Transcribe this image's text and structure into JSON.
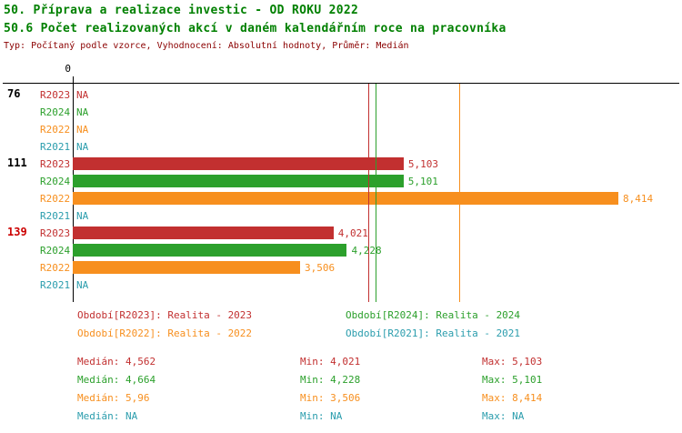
{
  "colors": {
    "title_green": "#008000",
    "meta_red": "#8b0000",
    "axis_black": "#000000",
    "flag_red": "#cc0000",
    "series": {
      "R2023": "#c23030",
      "R2024": "#2ca02c",
      "R2022": "#f78f1e",
      "R2021": "#2b9dad"
    }
  },
  "chart_data": {
    "type": "bar",
    "orientation": "horizontal",
    "title": "50. Příprava a realizace investic - OD ROKU 2022",
    "subtitle": "50.6 Počet realizovaných akcí v daném kalendářním roce na pracovníka",
    "meta": "Typ: Počítaný podle vzorce, Vyhodnocení: Absolutní hodnoty, Průměr: Medián",
    "value_axis_start_label": "0",
    "xmax": 8.414,
    "grid": false,
    "series_order": [
      "R2023",
      "R2024",
      "R2022",
      "R2021"
    ],
    "groups": [
      {
        "label": "76",
        "label_color": "#000000",
        "bars": [
          {
            "series": "R2023",
            "value": null,
            "display": "NA"
          },
          {
            "series": "R2024",
            "value": null,
            "display": "NA"
          },
          {
            "series": "R2022",
            "value": null,
            "display": "NA"
          },
          {
            "series": "R2021",
            "value": null,
            "display": "NA"
          }
        ]
      },
      {
        "label": "111",
        "label_color": "#000000",
        "bars": [
          {
            "series": "R2023",
            "value": 5.103,
            "display": "5,103"
          },
          {
            "series": "R2024",
            "value": 5.101,
            "display": "5,101"
          },
          {
            "series": "R2022",
            "value": 8.414,
            "display": "8,414"
          },
          {
            "series": "R2021",
            "value": null,
            "display": "NA"
          }
        ]
      },
      {
        "label": "139",
        "label_color": "#cc0000",
        "bars": [
          {
            "series": "R2023",
            "value": 4.021,
            "display": "4,021"
          },
          {
            "series": "R2024",
            "value": 4.228,
            "display": "4,228"
          },
          {
            "series": "R2022",
            "value": 3.506,
            "display": "3,506"
          },
          {
            "series": "R2021",
            "value": null,
            "display": "NA"
          }
        ]
      }
    ],
    "median_lines": [
      {
        "series": "R2023",
        "value": 4.562
      },
      {
        "series": "R2024",
        "value": 4.664
      },
      {
        "series": "R2022",
        "value": 5.96
      }
    ],
    "legend": [
      {
        "series": "R2023",
        "text": "Období[R2023]: Realita - 2023"
      },
      {
        "series": "R2024",
        "text": "Období[R2024]: Realita - 2024"
      },
      {
        "series": "R2022",
        "text": "Období[R2022]: Realita - 2022"
      },
      {
        "series": "R2021",
        "text": "Období[R2021]: Realita - 2021"
      }
    ],
    "stats_table": {
      "labels": {
        "median": "Medián",
        "min": "Min",
        "max": "Max"
      },
      "rows": [
        {
          "series": "R2023",
          "median": "4,562",
          "min": "4,021",
          "max": "5,103"
        },
        {
          "series": "R2024",
          "median": "4,664",
          "min": "4,228",
          "max": "5,101"
        },
        {
          "series": "R2022",
          "median": "5,96",
          "min": "3,506",
          "max": "8,414"
        },
        {
          "series": "R2021",
          "median": "NA",
          "min": "NA",
          "max": "NA"
        }
      ]
    }
  }
}
